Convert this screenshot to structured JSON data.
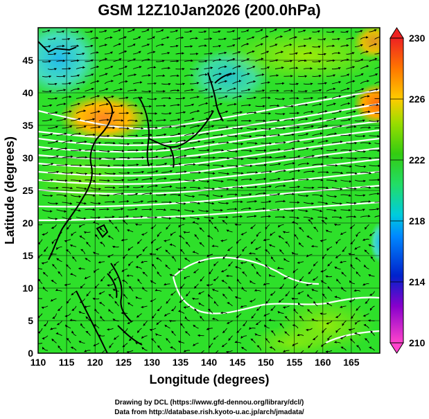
{
  "title": "GSM 12Z10Jan2026 (200.0hPa)",
  "x_axis": {
    "label": "Longitude (degrees)",
    "min": 110,
    "max": 170,
    "ticks": [
      110,
      115,
      120,
      125,
      130,
      135,
      140,
      145,
      150,
      155,
      160,
      165
    ]
  },
  "y_axis": {
    "label": "Latitude (degrees)",
    "min": 0,
    "max": 50,
    "ticks": [
      0,
      5,
      10,
      15,
      20,
      25,
      30,
      35,
      40,
      45
    ]
  },
  "colorbar": {
    "min": 210,
    "max": 230,
    "ticks": [
      210,
      214,
      218,
      222,
      226,
      230
    ]
  },
  "credits": {
    "line1": "Drawing by DCL (https://www.gfd-dennou.org/library/dcl/)",
    "line2": "Data from http://database.rish.kyoto-u.ac.jp/arch/jmadata/"
  },
  "colors": {
    "field_base": "#22dd22",
    "warm": "#ff9922",
    "cool": "#55ddaa",
    "contour": "#ffffff",
    "vector": "#000000"
  }
}
